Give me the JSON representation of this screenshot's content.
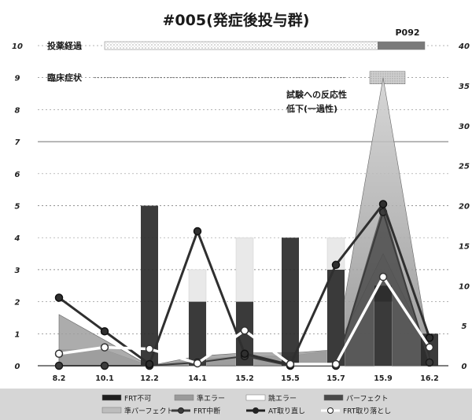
{
  "chart_data": {
    "type": "bar",
    "title": "#005(発症後投与群)",
    "categories": [
      "8.2",
      "10.1",
      "12.2",
      "14.1",
      "15.2",
      "15.5",
      "15.7",
      "15.9",
      "16.2"
    ],
    "y_left": {
      "ticks": [
        "0",
        "1",
        "2",
        "3",
        "4",
        "5",
        "6",
        "7",
        "8",
        "9",
        "10"
      ],
      "ylim": [
        0,
        10
      ]
    },
    "y_right": {
      "ticks": [
        "0",
        "5",
        "10",
        "15",
        "20",
        "25",
        "30",
        "35",
        "40"
      ],
      "ylim": [
        0,
        40
      ]
    },
    "bands": [
      {
        "label": "投薬経過",
        "value": 10,
        "x_end_category": "16.2",
        "end_label": "P092"
      },
      {
        "label": "臨床症状",
        "value": 9
      }
    ],
    "annotation": {
      "lines": [
        "試験への反応性",
        "低下(一過性)"
      ]
    },
    "series": [
      {
        "name": "FRT不可",
        "kind": "bar",
        "color": "#2a2a2a",
        "values": [
          0,
          0,
          5,
          2,
          2,
          4,
          3,
          2.5,
          1
        ]
      },
      {
        "name": "準エラー",
        "kind": "area",
        "color": "#9a9a9a",
        "values": [
          1.6,
          0.8,
          0,
          0.3,
          0.4,
          0.4,
          0.5,
          3.5,
          0.5
        ]
      },
      {
        "name": "跳エラー",
        "kind": "bar",
        "color": "#e6e6e6",
        "values": [
          0,
          0,
          0,
          3,
          4,
          0,
          4,
          2,
          0
        ]
      },
      {
        "name": "パーフェクト",
        "kind": "area",
        "color": "#6e6e6e",
        "values": [
          0,
          0,
          0,
          0,
          0,
          0,
          0,
          5,
          0
        ]
      },
      {
        "name": "準パーフェクト",
        "kind": "area",
        "color": "#bdbdbd",
        "values": [
          0.5,
          0.5,
          0,
          0.2,
          0.3,
          0.3,
          0.5,
          9,
          0.5
        ]
      },
      {
        "name": "FRT中断",
        "kind": "line",
        "axis": "left",
        "color": "#3c3c3c",
        "values": [
          0,
          0,
          0,
          0.1,
          0.3,
          0,
          0,
          4.8,
          0.1
        ]
      },
      {
        "name": "AT取り直し",
        "kind": "line",
        "axis": "right",
        "color": "#2f2f2f",
        "values": [
          8.5,
          4.3,
          0.2,
          16.8,
          1.5,
          0.1,
          12.6,
          20.2,
          3.5
        ]
      },
      {
        "name": "FRT取り落とし",
        "kind": "line",
        "axis": "right",
        "color": "#ffffff",
        "values": [
          1.5,
          2.3,
          2.1,
          0.3,
          4.4,
          0.2,
          0.2,
          11.1,
          2.3
        ]
      }
    ]
  }
}
